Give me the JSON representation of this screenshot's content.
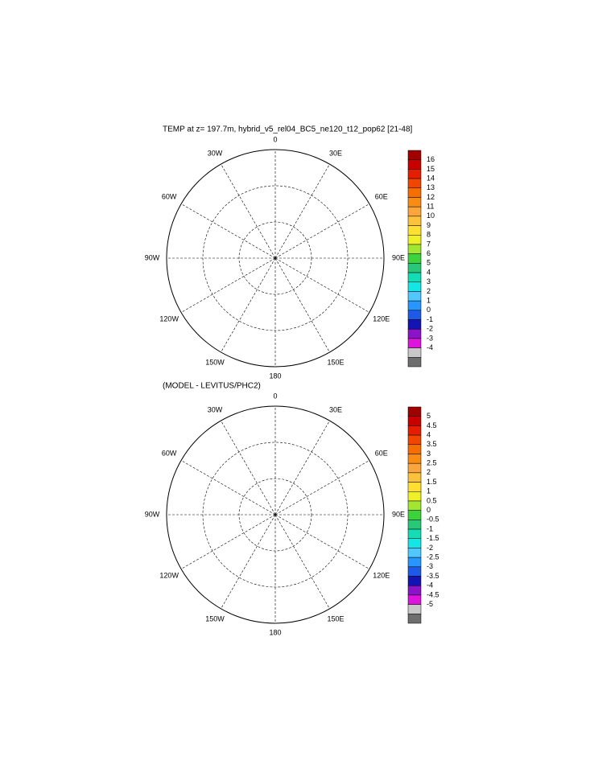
{
  "maps": [
    {
      "title": "TEMP at z= 197.7m, hybrid_v5_rel04_BC5_ne120_t12_pop62 [21-48]",
      "lon_labels": [
        "0",
        "30E",
        "60E",
        "90E",
        "120E",
        "150E",
        "180",
        "150W",
        "120W",
        "90W",
        "60W",
        "30W"
      ],
      "colorbar": {
        "ticks": [
          16,
          15,
          14,
          13,
          12,
          11,
          10,
          9,
          8,
          7,
          6,
          5,
          4,
          3,
          2,
          1,
          0,
          -1,
          -2,
          -3,
          -4
        ],
        "colors": [
          "#a00000",
          "#c80000",
          "#e61e00",
          "#f04600",
          "#f56e00",
          "#f98c14",
          "#fba63c",
          "#fdc23c",
          "#ffe032",
          "#f0f028",
          "#a0e632",
          "#3cd23c",
          "#28c878",
          "#14dcb4",
          "#14e6e6",
          "#50c8ff",
          "#2896ff",
          "#1e5ae6",
          "#1414b4",
          "#8c14c8",
          "#dc14dc",
          "#c8c8c8",
          "#6e6e6e"
        ]
      }
    },
    {
      "title": "(MODEL - LEVITUS/PHC2)",
      "lon_labels": [
        "0",
        "30E",
        "60E",
        "90E",
        "120E",
        "150E",
        "180",
        "150W",
        "120W",
        "90W",
        "60W",
        "30W"
      ],
      "colorbar": {
        "ticks": [
          5,
          4.5,
          4,
          3.5,
          3,
          2.5,
          2,
          1.5,
          1,
          0.5,
          0,
          -0.5,
          -1,
          -1.5,
          -2,
          -2.5,
          -3,
          -3.5,
          -4,
          -4.5,
          -5
        ],
        "colors": [
          "#a00000",
          "#c80000",
          "#e61e00",
          "#f04600",
          "#f56e00",
          "#f98c14",
          "#fba63c",
          "#fdc23c",
          "#ffe032",
          "#f0f028",
          "#a0e632",
          "#3cd23c",
          "#28c878",
          "#14dcb4",
          "#14e6e6",
          "#50c8ff",
          "#2896ff",
          "#1e5ae6",
          "#1414b4",
          "#8c14c8",
          "#dc14dc",
          "#c8c8c8",
          "#6e6e6e"
        ]
      }
    }
  ]
}
